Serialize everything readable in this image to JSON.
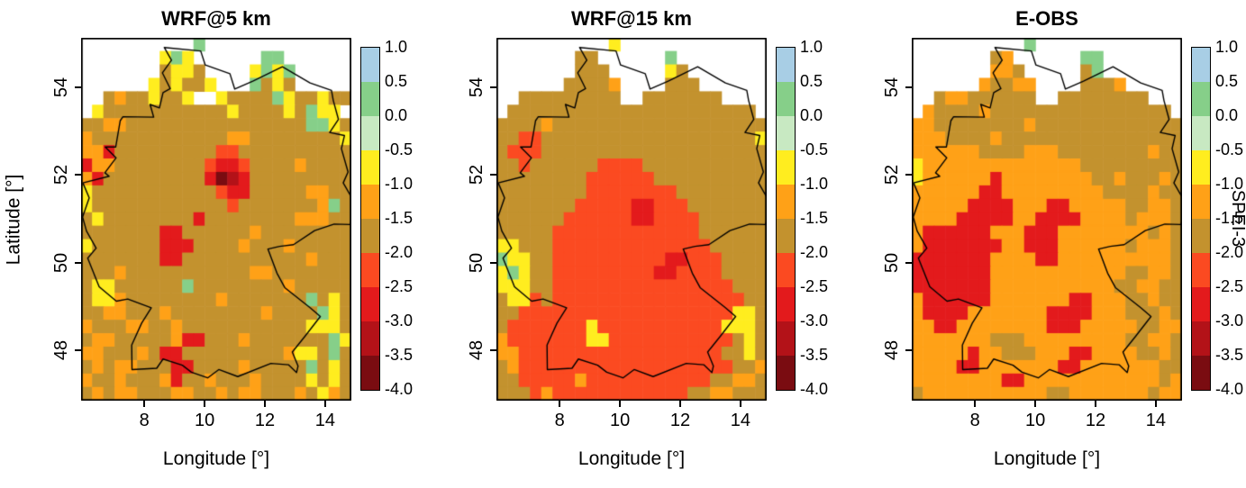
{
  "chart_data": {
    "type": "heatmap",
    "xlabel": "Longitude [°]",
    "ylabel": "Latitude [°]",
    "xticks": [
      8,
      10,
      12,
      14
    ],
    "yticks": [
      54,
      52,
      50,
      48
    ],
    "xlim": [
      5.9,
      14.87
    ],
    "ylim": [
      46.85,
      55.13
    ],
    "grid_cols": 24,
    "palette": {
      "b": "#a8cee5",
      "g": "#86cf89",
      "p": "#c8e9c2",
      "y": "#ffed1f",
      "o": "#ffa117",
      "t": "#c3922e",
      "r": "#fb4a21",
      "e": "#e31a1c",
      "f": "#b31218",
      "d": "#7a0c11"
    },
    "bins": {
      "b": "1.0 to 0.5",
      "g": "0.5 to 0.0",
      "p": "0.0 to -0.5",
      "y": "-0.5 to -1.0",
      "o": "-1.0 to -1.5",
      "t": "-1.5 to -2.0",
      "r": "-2.0 to -2.5",
      "e": "-2.5 to -3.0",
      "f": "-3.0 to -3.5",
      "d": "-3.5 to -4.0"
    },
    "colorbar": {
      "title": "SPEI-3",
      "order": "bgpyotrefd",
      "tick_labels": [
        "1.0",
        "0.5",
        "0.0",
        "-0.5",
        "-1.0",
        "-1.5",
        "-2.0",
        "-2.5",
        "-3.0",
        "-3.5",
        "-4.0"
      ]
    },
    "panels": [
      {
        "title": "WRF@5 km",
        "grid_rows": [
          "..........g.............",
          ".......ygy......gg......",
          ".......tyyt....ygyg.....",
          "......ytytty...gtyt.....",
          "..tottytty..yttttgyttytt",
          ".ytttttttttttyttttytgyy.",
          "ttoottttttttttttttttggyt",
          "ottttttttttttootttttttty",
          "ooetttttttttrrtttttttttt",
          "eoottttttttreerttttotttt",
          "oetttttttttedfettttttttt",
          "ytttttttttttreetttttoott",
          "yttttttttttttrtttttttogt",
          "tyttttttttettttttttooott",
          "ttttttteettttttotttttttt",
          "ytttttteeettttotttottttt",
          "ttttttteetttttttttttottt",
          "tttotttttttttttoottttttt",
          "tyyttttttgttttttttottttt",
          "tyyottttttttotttttttgtyt",
          "ttootttottttttttottttgyt",
          "otttoottotttttttttttyyyt",
          "tootttttoeetttotttttttgy",
          "ootttoteetttttttttoyytgt",
          "totoottteettttotttttgtyt",
          "ottotttoettotttottttytyt",
          "totootttoottotootttotyot"
        ]
      },
      {
        "title": "WRF@15 km",
        "grid_rows": [
          "..........y.............",
          ".......tt......g........",
          ".......ttt.....yt.......",
          "......tttto....ttt......",
          "..ttttttttt..ttttttt....",
          ".tttttttttttttttttttttt.",
          "ttttottttttttttttttttttt",
          "ttrrttttttttttttttttttty",
          "trrrtttttttttttttttttttt",
          "ttrttttttrrrrttttttttttt",
          "ttttttttrrrrrrtttttttttt",
          "ttttttttrrrrrrrrtttttttt",
          "tttttttrrrrreerrrttttttt",
          "ttttttrrrrrreerrrrtttttt",
          "tttttrrrrrrrrrrrrrtttttt",
          "yytttrrrrrrrrrrrrrrttttt",
          "gyyttrrrrrrrrrreerrrtttt",
          "ygyttrrrrrrrrreerrrrtttt",
          "yyyttrrrrrrrrrrrrrrrrttt",
          "tyyrtrrrrrrrrrrrrrrrrrtt",
          "ttrrrrrrrrrrrrrrrrrrryyt",
          "trrrrrrryrrrrrrrrrrryyyt",
          "orrrrrrryyrrrrrrrrrrrtyt",
          "oorrrrrrrrrrrrrrrrrrttyt",
          "torrrrrrrrrrrrrrrrrrrtto",
          "ttrrrrrorrrrrrrrrrrttoot",
          "tttrorrrrrrrrrrrrttoottt"
        ]
      },
      {
        "title": "E-OBS",
        "grid_rows": [
          "..........g.............",
          ".......to......gg.......",
          ".......oot.....tg.......",
          "......ottoo....ttto.....",
          "..tootttttt..tttttttt...",
          ".ottttotttttttttttttttt.",
          "oottttttttottttttttttttt",
          "ooottttotttttttttttttttt",
          "oooooottttooottttttttott",
          "yoooooooooooooottttttttt",
          "yooooooeoooooooottotttot",
          "ooooooeeooooooooottttott",
          "oooooeeeeoooeeooooottoot",
          "ooooeeeeeooeeeeooootooot",
          "oeeeeeeoooeeeooooooootot",
          "oeeeeeeeooeeeooooootooot",
          "eeeeeeeooooeeoooooooooot",
          "eeeeeeeoooooooooooottoot",
          "eeeeeeeooooooooooottoott",
          "oeeeeeeoooooooeeooottott",
          "oeeeeoooooooeeeeoootttot",
          "ooeeooooooooeeeooooottoo",
          "oooooootttooooooooottoot",
          "oooooeootttoooeeoooottot",
          "ooooeeoooooooeeooooooott",
          "ooooooooeeooooooooooooto",
          "tooooooooooottoooooootoo"
        ]
      }
    ],
    "outline_germany": [
      [
        5.96,
        51.82
      ],
      [
        6.17,
        51.48
      ],
      [
        5.95,
        51.04
      ],
      [
        6.08,
        50.72
      ],
      [
        6.4,
        50.33
      ],
      [
        6.12,
        50.1
      ],
      [
        6.5,
        49.45
      ],
      [
        7.07,
        49.12
      ],
      [
        7.45,
        49.17
      ],
      [
        8.23,
        48.97
      ],
      [
        7.91,
        48.62
      ],
      [
        7.58,
        48.12
      ],
      [
        7.59,
        47.56
      ],
      [
        8.41,
        47.59
      ],
      [
        8.62,
        47.8
      ],
      [
        9.26,
        47.66
      ],
      [
        9.56,
        47.5
      ],
      [
        10.1,
        47.37
      ],
      [
        10.47,
        47.56
      ],
      [
        11.1,
        47.4
      ],
      [
        12.2,
        47.7
      ],
      [
        12.78,
        47.67
      ],
      [
        13.05,
        47.49
      ],
      [
        13.1,
        47.64
      ],
      [
        12.91,
        47.96
      ],
      [
        13.33,
        48.32
      ],
      [
        13.84,
        48.77
      ],
      [
        13.5,
        48.97
      ],
      [
        12.66,
        49.43
      ],
      [
        12.4,
        49.76
      ],
      [
        12.1,
        50.31
      ],
      [
        12.49,
        50.37
      ],
      [
        12.95,
        50.41
      ],
      [
        13.65,
        50.73
      ],
      [
        14.3,
        50.88
      ],
      [
        14.83,
        50.87
      ],
      [
        15.04,
        51.29
      ],
      [
        14.6,
        51.82
      ],
      [
        14.76,
        52.07
      ],
      [
        14.54,
        52.6
      ],
      [
        14.64,
        52.9
      ],
      [
        14.15,
        52.97
      ],
      [
        14.44,
        53.27
      ],
      [
        14.27,
        53.7
      ],
      [
        14.21,
        53.93
      ],
      [
        13.5,
        54.1
      ],
      [
        12.58,
        54.47
      ],
      [
        11.6,
        54.14
      ],
      [
        11.0,
        53.96
      ],
      [
        10.84,
        54.31
      ],
      [
        10.02,
        54.51
      ],
      [
        9.87,
        54.83
      ],
      [
        8.66,
        54.91
      ],
      [
        8.9,
        54.62
      ],
      [
        8.6,
        54.33
      ],
      [
        8.86,
        53.97
      ],
      [
        8.62,
        53.88
      ],
      [
        8.5,
        53.53
      ],
      [
        8.19,
        53.61
      ],
      [
        8.31,
        53.32
      ],
      [
        7.29,
        53.33
      ],
      [
        7.2,
        53.24
      ],
      [
        7.05,
        52.64
      ],
      [
        6.7,
        52.64
      ],
      [
        7.06,
        52.39
      ],
      [
        6.69,
        52.05
      ],
      [
        6.83,
        51.97
      ],
      [
        5.96,
        51.82
      ]
    ]
  }
}
